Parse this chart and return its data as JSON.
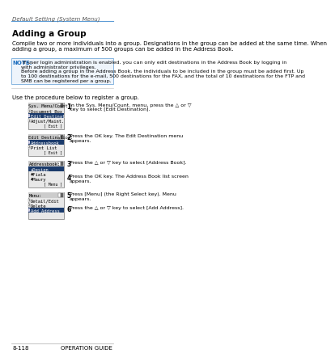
{
  "title": "Adding a Group",
  "header_text": "Default Setting (System Menu)",
  "body_text1": "Compile two or more individuals into a group. Designations in the group can be added at the same time. When\nadding a group, a maximum of 500 groups can be added in the Address Book.",
  "note_label": "NOTE:",
  "note_body": " If user login administration is enabled, you can only edit destinations in the Address Book by logging in\nwith administrator privileges.\nBefore adding a group in the Address Book, the individuals to be included in the group must be added first. Up\nto 100 destinations for the e-mail, 500 destinations for the FAX, and the total of 10 destinations for the FTP and\nSMB can be registered per a group.",
  "procedure_intro": "Use the procedure below to register a group.",
  "steps": [
    {
      "num": "1",
      "text": "In the Sys. Menu/Count. menu, press the △ or ▽\nkey to select [Edit Destination]."
    },
    {
      "num": "2",
      "text": "Press the OK key. The Edit Destination menu\nappears."
    },
    {
      "num": "3",
      "text": "Press the △ or ▽ key to select [Address Book]."
    },
    {
      "num": "4",
      "text": "Press the OK key. The Address Book list screen\nappears."
    },
    {
      "num": "5",
      "text": "Press [Menu] (the Right Select key). Menu\nappears."
    },
    {
      "num": "6",
      "text": "Press the △ or ▽ key to select [Add Address]."
    }
  ],
  "screens": [
    {
      "title": "Sys. Menu/Count.:",
      "lines": [
        "Document Box",
        "Edit Destination",
        "Adjust/Maint."
      ],
      "highlight": 1,
      "footer": "Exit",
      "has_icons": true
    },
    {
      "title": "Edit Destination:",
      "lines": [
        "Addressbook",
        "Print List"
      ],
      "highlight": 0,
      "footer": "Exit",
      "has_icons": true
    },
    {
      "title": "Addressbook:",
      "lines": [
        "★Design",
        "♣Fiala",
        "♣Maury"
      ],
      "highlight": 0,
      "footer": "Menu",
      "has_icons": false
    },
    {
      "title": "Menu:",
      "lines": [
        "Detail/Edit",
        "Delete",
        "Add Address"
      ],
      "highlight": 2,
      "footer": "",
      "has_icons": true
    }
  ],
  "footer_left": "8-118",
  "footer_right": "OPERATION GUIDE",
  "bg_color": "#ffffff",
  "header_line_color": "#5b9bd5",
  "note_color": "#1f6fbf",
  "screen_highlight": "#1a3a6b"
}
